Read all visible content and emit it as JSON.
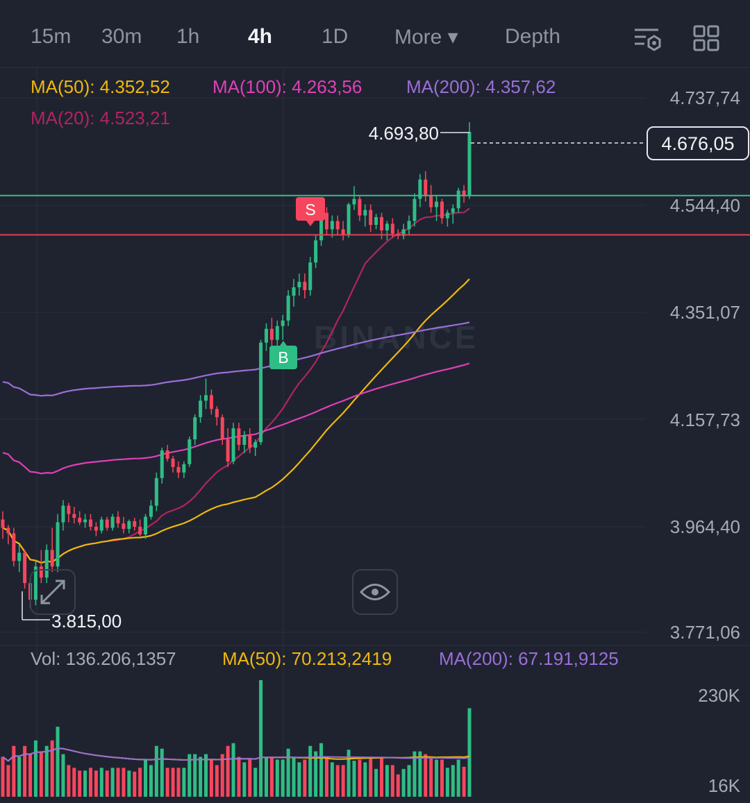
{
  "tabs": [
    {
      "label": "15m",
      "active": false
    },
    {
      "label": "30m",
      "active": false
    },
    {
      "label": "1h",
      "active": false
    },
    {
      "label": "4h",
      "active": true
    },
    {
      "label": "1D",
      "active": false
    },
    {
      "label": "More ▾",
      "active": false
    },
    {
      "label": "Depth",
      "active": false
    }
  ],
  "icons": {
    "settings": "chart-settings-icon",
    "layout": "grid-layout-icon",
    "expand": "expand-icon",
    "visibility": "eye-icon"
  },
  "ma_legend": {
    "ma50": "MA(50): 4.352,52",
    "ma100": "MA(100): 4.263,56",
    "ma200": "MA(200): 4.357,62",
    "ma20": "MA(20): 4.523,21"
  },
  "vol_legend": {
    "vol": "Vol: 136.206,1357",
    "ma50": "MA(50): 70.213,2419",
    "ma200": "MA(200): 67.191,9125"
  },
  "watermark": "BINANCE",
  "colors": {
    "up": "#2ebd85",
    "down": "#f6465d",
    "ma50": "#f0b90b",
    "ma100": "#e040b8",
    "ma200": "#9b6fd8",
    "ma20": "#b0245f",
    "bg": "#1f2330"
  },
  "chart_data": {
    "type": "candlestick",
    "interval": "4h",
    "price_axis": {
      "ticks": [
        "4.737,74",
        "4.544,40",
        "4.351,07",
        "4.157,73",
        "3.964,40",
        "3.771,06"
      ],
      "range": [
        3771.06,
        4737.74
      ]
    },
    "volume_axis": {
      "ticks": [
        "230K",
        "16K"
      ]
    },
    "current_price": "4.676,05",
    "high_label": "4.693,80",
    "low_label": "3.815,00",
    "horizontal_lines": [
      {
        "color": "green",
        "price": 4561
      },
      {
        "color": "red",
        "price": 4490
      }
    ],
    "markers": [
      {
        "label": "S",
        "type": "sell"
      },
      {
        "label": "B",
        "type": "buy"
      }
    ],
    "candles": [
      [
        3975,
        3990,
        3940,
        3960
      ],
      [
        3960,
        3965,
        3930,
        3950
      ],
      [
        3950,
        3960,
        3890,
        3900
      ],
      [
        3900,
        3930,
        3880,
        3915
      ],
      [
        3915,
        3920,
        3850,
        3860
      ],
      [
        3860,
        3870,
        3815,
        3830
      ],
      [
        3830,
        3900,
        3820,
        3890
      ],
      [
        3890,
        3920,
        3860,
        3870
      ],
      [
        3870,
        3930,
        3860,
        3920
      ],
      [
        3920,
        3960,
        3880,
        3890
      ],
      [
        3890,
        3985,
        3880,
        3970
      ],
      [
        3970,
        4010,
        3955,
        4000
      ],
      [
        4000,
        4005,
        3970,
        3985
      ],
      [
        3985,
        3998,
        3968,
        3978
      ],
      [
        3978,
        3990,
        3965,
        3970
      ],
      [
        3970,
        3985,
        3960,
        3975
      ],
      [
        3975,
        3985,
        3955,
        3962
      ],
      [
        3962,
        3970,
        3945,
        3955
      ],
      [
        3955,
        3980,
        3950,
        3975
      ],
      [
        3975,
        3980,
        3955,
        3960
      ],
      [
        3960,
        3985,
        3955,
        3980
      ],
      [
        3980,
        3990,
        3960,
        3968
      ],
      [
        3968,
        3980,
        3950,
        3958
      ],
      [
        3958,
        3975,
        3950,
        3972
      ],
      [
        3972,
        3978,
        3955,
        3962
      ],
      [
        3962,
        3975,
        3945,
        3948
      ],
      [
        3948,
        3985,
        3940,
        3980
      ],
      [
        3980,
        4010,
        3975,
        4000
      ],
      [
        4000,
        4060,
        3990,
        4050
      ],
      [
        4050,
        4105,
        4040,
        4100
      ],
      [
        4100,
        4110,
        4080,
        4085
      ],
      [
        4085,
        4090,
        4060,
        4070
      ],
      [
        4070,
        4080,
        4050,
        4060
      ],
      [
        4060,
        4080,
        4050,
        4075
      ],
      [
        4075,
        4125,
        4070,
        4120
      ],
      [
        4120,
        4165,
        4110,
        4160
      ],
      [
        4160,
        4200,
        4150,
        4190
      ],
      [
        4190,
        4230,
        4175,
        4200
      ],
      [
        4200,
        4210,
        4165,
        4175
      ],
      [
        4175,
        4180,
        4145,
        4160
      ],
      [
        4160,
        4165,
        4110,
        4120
      ],
      [
        4120,
        4140,
        4070,
        4080
      ],
      [
        4080,
        4150,
        4075,
        4140
      ],
      [
        4140,
        4150,
        4100,
        4110
      ],
      [
        4110,
        4135,
        4095,
        4128
      ],
      [
        4128,
        4140,
        4095,
        4105
      ],
      [
        4105,
        4120,
        4090,
        4115
      ],
      [
        4115,
        4300,
        4110,
        4295
      ],
      [
        4295,
        4330,
        4280,
        4320
      ],
      [
        4320,
        4340,
        4290,
        4300
      ],
      [
        4300,
        4335,
        4290,
        4325
      ],
      [
        4325,
        4345,
        4300,
        4335
      ],
      [
        4335,
        4390,
        4325,
        4380
      ],
      [
        4380,
        4410,
        4360,
        4395
      ],
      [
        4395,
        4420,
        4380,
        4405
      ],
      [
        4405,
        4420,
        4375,
        4390
      ],
      [
        4390,
        4450,
        4380,
        4440
      ],
      [
        4440,
        4490,
        4430,
        4480
      ],
      [
        4480,
        4545,
        4470,
        4530
      ],
      [
        4530,
        4540,
        4490,
        4500
      ],
      [
        4500,
        4525,
        4485,
        4515
      ],
      [
        4515,
        4525,
        4490,
        4500
      ],
      [
        4500,
        4515,
        4480,
        4490
      ],
      [
        4490,
        4548,
        4485,
        4545
      ],
      [
        4545,
        4578,
        4535,
        4555
      ],
      [
        4555,
        4560,
        4515,
        4525
      ],
      [
        4525,
        4545,
        4505,
        4535
      ],
      [
        4535,
        4545,
        4495,
        4508
      ],
      [
        4508,
        4528,
        4500,
        4522
      ],
      [
        4522,
        4530,
        4482,
        4498
      ],
      [
        4498,
        4515,
        4480,
        4510
      ],
      [
        4510,
        4520,
        4485,
        4492
      ],
      [
        4492,
        4500,
        4482,
        4488
      ],
      [
        4488,
        4510,
        4482,
        4500
      ],
      [
        4500,
        4525,
        4490,
        4515
      ],
      [
        4515,
        4565,
        4505,
        4555
      ],
      [
        4555,
        4600,
        4540,
        4590
      ],
      [
        4590,
        4605,
        4550,
        4560
      ],
      [
        4560,
        4580,
        4530,
        4540
      ],
      [
        4540,
        4560,
        4515,
        4550
      ],
      [
        4550,
        4555,
        4510,
        4520
      ],
      [
        4520,
        4535,
        4505,
        4530
      ],
      [
        4530,
        4545,
        4510,
        4538
      ],
      [
        4538,
        4575,
        4530,
        4570
      ],
      [
        4570,
        4580,
        4548,
        4560
      ],
      [
        4560,
        4693.8,
        4555,
        4676.05
      ]
    ],
    "volume_max": 230000
  }
}
